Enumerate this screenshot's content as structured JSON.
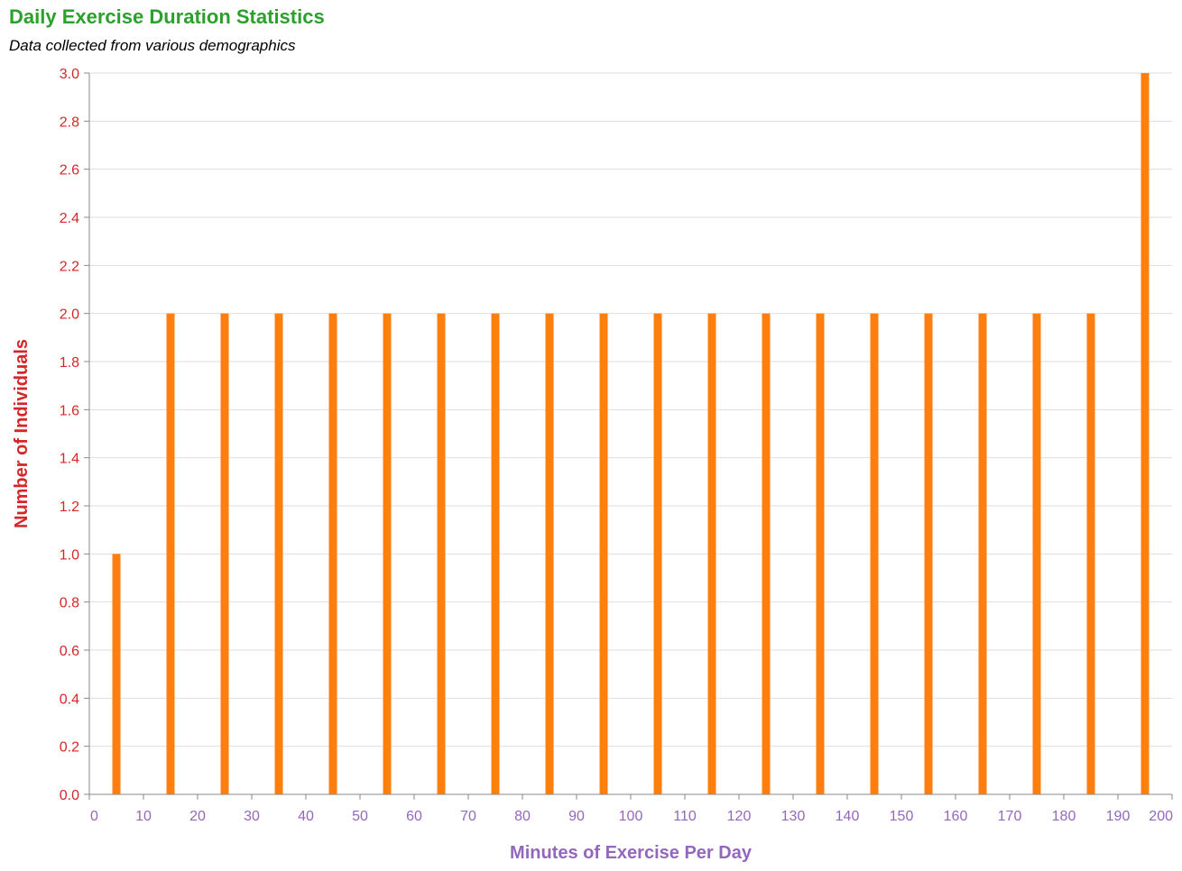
{
  "chart_data": {
    "type": "bar",
    "title": "Daily Exercise Duration Statistics",
    "subtitle": "Data collected from various demographics",
    "xlabel": "Minutes of Exercise Per Day",
    "ylabel": "Number of Individuals",
    "x_bin_starts": [
      0,
      10,
      20,
      30,
      40,
      50,
      60,
      70,
      80,
      90,
      100,
      110,
      120,
      130,
      140,
      150,
      160,
      170,
      180,
      190
    ],
    "bin_width": 10,
    "values": [
      1,
      2,
      2,
      2,
      2,
      2,
      2,
      2,
      2,
      2,
      2,
      2,
      2,
      2,
      2,
      2,
      2,
      2,
      2,
      3
    ],
    "xlim": [
      0,
      200
    ],
    "ylim": [
      0,
      3
    ],
    "x_ticks": [
      "0",
      "10",
      "20",
      "30",
      "40",
      "50",
      "60",
      "70",
      "80",
      "90",
      "100",
      "110",
      "120",
      "130",
      "140",
      "150",
      "160",
      "170",
      "180",
      "190",
      "200"
    ],
    "y_ticks": [
      "0.0",
      "0.2",
      "0.4",
      "0.6",
      "0.8",
      "1.0",
      "1.2",
      "1.4",
      "1.6",
      "1.8",
      "2.0",
      "2.2",
      "2.4",
      "2.6",
      "2.8",
      "3.0"
    ],
    "grid": true,
    "colors": {
      "bar": "#ff7f0e",
      "title": "#2ca02c",
      "y_axis": "#d62728",
      "x_axis": "#9467bd",
      "grid": "#dddddd"
    }
  }
}
